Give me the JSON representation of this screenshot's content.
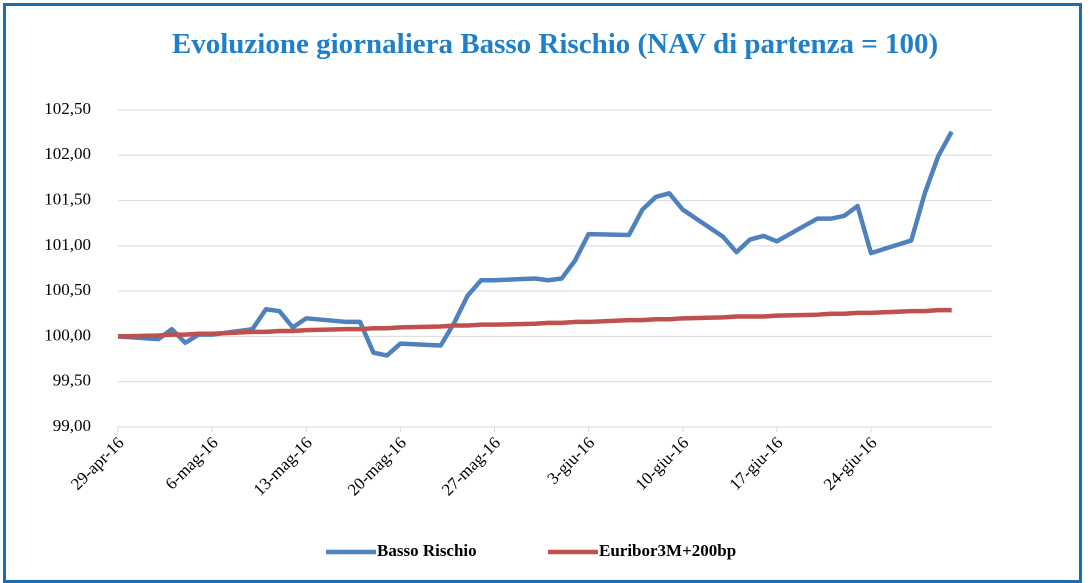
{
  "chart_data": {
    "type": "line",
    "title": "Evoluzione giornaliera Basso Rischio (NAV di partenza = 100)",
    "x": [
      "2016-04-29",
      "2016-05-02",
      "2016-05-03",
      "2016-05-04",
      "2016-05-05",
      "2016-05-06",
      "2016-05-09",
      "2016-05-10",
      "2016-05-11",
      "2016-05-12",
      "2016-05-13",
      "2016-05-16",
      "2016-05-17",
      "2016-05-18",
      "2016-05-19",
      "2016-05-20",
      "2016-05-23",
      "2016-05-24",
      "2016-05-25",
      "2016-05-26",
      "2016-05-27",
      "2016-05-30",
      "2016-05-31",
      "2016-06-01",
      "2016-06-02",
      "2016-06-03",
      "2016-06-06",
      "2016-06-07",
      "2016-06-08",
      "2016-06-09",
      "2016-06-10",
      "2016-06-13",
      "2016-06-14",
      "2016-06-15",
      "2016-06-16",
      "2016-06-17",
      "2016-06-20",
      "2016-06-21",
      "2016-06-22",
      "2016-06-23",
      "2016-06-24",
      "2016-06-27",
      "2016-06-28",
      "2016-06-29",
      "2016-06-30"
    ],
    "series": [
      {
        "name": "Basso Rischio",
        "color": "#4f81bd",
        "values": [
          100.0,
          99.97,
          100.08,
          99.93,
          100.02,
          100.02,
          100.08,
          100.3,
          100.28,
          100.1,
          100.2,
          100.16,
          100.16,
          99.82,
          99.79,
          99.92,
          99.9,
          100.15,
          100.45,
          100.62,
          100.62,
          100.64,
          100.62,
          100.64,
          100.84,
          101.13,
          101.12,
          101.4,
          101.54,
          101.58,
          101.4,
          101.1,
          100.93,
          101.07,
          101.11,
          101.05,
          101.3,
          101.3,
          101.33,
          101.44,
          100.92,
          101.06,
          101.58,
          101.99,
          102.26
        ]
      },
      {
        "name": "Euribor3M+200bp",
        "color": "#c0504d",
        "values": [
          100.0,
          100.01,
          100.02,
          100.02,
          100.03,
          100.03,
          100.05,
          100.05,
          100.06,
          100.06,
          100.07,
          100.08,
          100.08,
          100.09,
          100.09,
          100.1,
          100.11,
          100.12,
          100.12,
          100.13,
          100.13,
          100.14,
          100.15,
          100.15,
          100.16,
          100.16,
          100.18,
          100.18,
          100.19,
          100.19,
          100.2,
          100.21,
          100.22,
          100.22,
          100.22,
          100.23,
          100.24,
          100.25,
          100.25,
          100.26,
          100.26,
          100.28,
          100.28,
          100.29,
          100.29
        ]
      }
    ],
    "xlim": [
      "2016-04-29",
      "2016-07-03"
    ],
    "xticks": [
      {
        "value": "2016-04-29",
        "label": "29-apr-16"
      },
      {
        "value": "2016-05-06",
        "label": "6-mag-16"
      },
      {
        "value": "2016-05-13",
        "label": "13-mag-16"
      },
      {
        "value": "2016-05-20",
        "label": "20-mag-16"
      },
      {
        "value": "2016-05-27",
        "label": "27-mag-16"
      },
      {
        "value": "2016-06-03",
        "label": "3-giu-16"
      },
      {
        "value": "2016-06-10",
        "label": "10-giu-16"
      },
      {
        "value": "2016-06-17",
        "label": "17-giu-16"
      },
      {
        "value": "2016-06-24",
        "label": "24-giu-16"
      }
    ],
    "ylim": [
      99,
      102.5
    ],
    "yticks": [
      {
        "value": 99,
        "label": "99,00"
      },
      {
        "value": 99.5,
        "label": "99,50"
      },
      {
        "value": 100,
        "label": "100,00"
      },
      {
        "value": 100.5,
        "label": "100,50"
      },
      {
        "value": 101,
        "label": "101,00"
      },
      {
        "value": 101.5,
        "label": "101,50"
      },
      {
        "value": 102,
        "label": "102,00"
      },
      {
        "value": 102.5,
        "label": "102,50"
      }
    ],
    "grid": true,
    "legend": "bottom"
  }
}
